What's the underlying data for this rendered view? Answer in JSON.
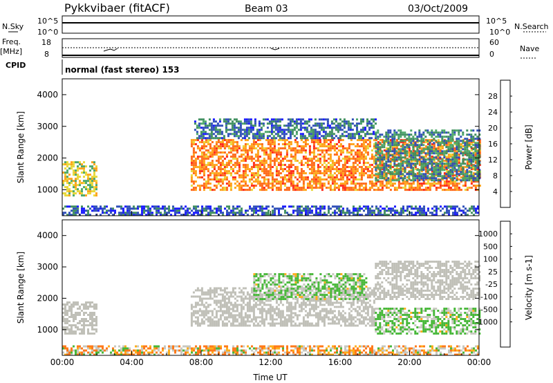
{
  "header": {
    "station": "Pykkvibaer (fitACF)",
    "beam": "Beam 03",
    "date": "03/Oct/2009"
  },
  "status_panels": {
    "nsky_label": "N.Sky",
    "nsearch_label": "N.Search",
    "noise_ticks": [
      "10^5",
      "10^0"
    ],
    "freq_label": "Freq.",
    "freq_unit": "[MHz]",
    "freq_ticks": [
      "18",
      "8"
    ],
    "nave_label": "Nave",
    "nave_ticks": [
      "60",
      "0"
    ],
    "cpid_label": "CPID",
    "cpid_value": "normal (fast stereo) 153"
  },
  "colors": {
    "power_scale": [
      "#1a1aff",
      "#2f4fb8",
      "#3f8f5f",
      "#4ca86a",
      "#e8d838",
      "#ffa31a",
      "#ff6a1a",
      "#ff2a1a"
    ],
    "velocity_scale": [
      "#1f43b5",
      "#2e6fb0",
      "#2f8f5a",
      "#48b83a",
      "#c8c8c0",
      "#c8c8c0",
      "#ffae1a",
      "#ff7a1a",
      "#ff4a1a",
      "#ff1a1a"
    ],
    "ground_scatter": "#c0c0b8"
  },
  "chart_data": [
    {
      "type": "heatmap",
      "title": "",
      "xlabel": "",
      "ylabel": "Slant Range [km]",
      "xlim": [
        "00:00",
        "24:00"
      ],
      "ylim": [
        180,
        4500
      ],
      "yticks": [
        "4000",
        "3000",
        "2000",
        "1000"
      ],
      "colorbar_label": "Power [dB]",
      "colorbar_ticks": [
        "28",
        "24",
        "20",
        "16",
        "12",
        "8",
        "4"
      ],
      "colorbar_range": [
        0,
        32
      ],
      "regions": [
        {
          "t_start": 0.0,
          "t_end": 2.0,
          "range_low": 850,
          "range_high": 1900,
          "power": 18
        },
        {
          "t_start": 7.4,
          "t_end": 24.0,
          "range_low": 1000,
          "range_high": 2600,
          "power": 24
        },
        {
          "t_start": 7.6,
          "t_end": 18.0,
          "range_low": 2600,
          "range_high": 3250,
          "power": 8
        },
        {
          "t_start": 18.0,
          "t_end": 24.0,
          "range_low": 1300,
          "range_high": 2900,
          "power": 10
        },
        {
          "t_start": 0.0,
          "t_end": 24.0,
          "range_low": 180,
          "range_high": 500,
          "power": 6
        }
      ]
    },
    {
      "type": "heatmap",
      "title": "",
      "xlabel": "Time UT",
      "ylabel": "Slant Range [km]",
      "xlim": [
        "00:00",
        "24:00"
      ],
      "ylim": [
        180,
        4500
      ],
      "xticks": [
        "00:00",
        "04:00",
        "08:00",
        "12:00",
        "16:00",
        "20:00",
        "00:00"
      ],
      "yticks": [
        "4000",
        "3000",
        "2000",
        "1000"
      ],
      "colorbar_label": "Velocity [m s-1]",
      "colorbar_ticks": [
        "1000",
        "500",
        "100",
        "25",
        "-25",
        "-100",
        "-500",
        "-1000"
      ],
      "regions": [
        {
          "t_start": 0.0,
          "t_end": 2.0,
          "range_low": 850,
          "range_high": 1900,
          "velocity": 0,
          "ground_scatter": true
        },
        {
          "t_start": 7.4,
          "t_end": 18.0,
          "range_low": 1150,
          "range_high": 2350,
          "velocity": 0,
          "ground_scatter": true
        },
        {
          "t_start": 11.0,
          "t_end": 17.5,
          "range_low": 2000,
          "range_high": 2800,
          "velocity": 150
        },
        {
          "t_start": 18.0,
          "t_end": 24.0,
          "range_low": 900,
          "range_high": 1700,
          "velocity": 150
        },
        {
          "t_start": 18.0,
          "t_end": 24.0,
          "range_low": 2000,
          "range_high": 3200,
          "velocity": 0,
          "ground_scatter": true
        },
        {
          "t_start": 0.0,
          "t_end": 24.0,
          "range_low": 180,
          "range_high": 500,
          "velocity": -50
        }
      ]
    }
  ]
}
